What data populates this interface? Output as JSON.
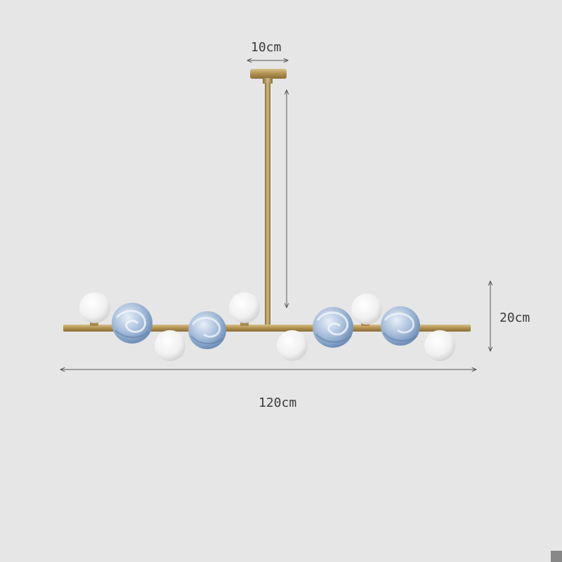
{
  "dimensions": {
    "canopy_width": "10cm",
    "fixture_height": "20cm",
    "fixture_length": "120cm"
  },
  "colors": {
    "background": "#e6e6e6",
    "brass": "#b89a5a",
    "opal_glass": "#f4f4f4",
    "marbled_glass": "#9fb8d6",
    "dimension_line": "#555555"
  },
  "globes": {
    "opal_count": 6,
    "marbled_count": 4
  }
}
